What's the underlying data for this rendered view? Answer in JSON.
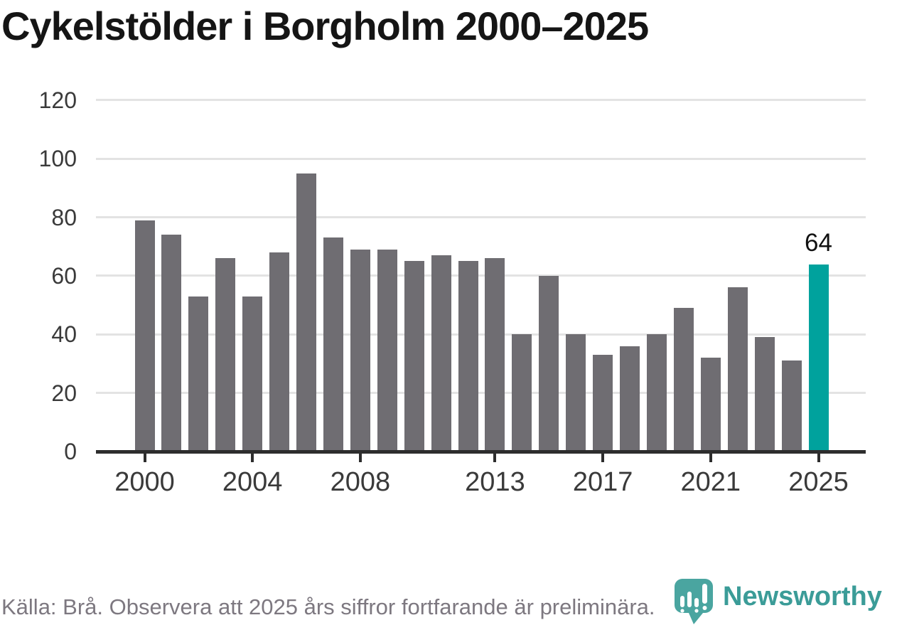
{
  "chart_data": {
    "type": "bar",
    "title": "Cykelstölder i Borgholm 2000–2025",
    "categories": [
      "2000",
      "2001",
      "2002",
      "2003",
      "2004",
      "2005",
      "2006",
      "2007",
      "2008",
      "2009",
      "2010",
      "2011",
      "2012",
      "2013",
      "2014",
      "2015",
      "2016",
      "2017",
      "2018",
      "2019",
      "2020",
      "2021",
      "2022",
      "2023",
      "2024",
      "2025"
    ],
    "values": [
      79,
      74,
      53,
      66,
      53,
      68,
      95,
      73,
      69,
      69,
      65,
      67,
      65,
      66,
      40,
      60,
      40,
      33,
      36,
      40,
      49,
      32,
      56,
      39,
      31,
      64
    ],
    "x_tick_labels": [
      "2000",
      "2004",
      "2008",
      "2013",
      "2017",
      "2021",
      "2025"
    ],
    "y_ticks": [
      0,
      20,
      40,
      60,
      80,
      100,
      120
    ],
    "ylim": [
      0,
      124
    ],
    "xlabel": "",
    "ylabel": "",
    "grid": "horizontal",
    "legend": "none",
    "bar_color": "#6f6d72",
    "highlight": {
      "category": "2025",
      "value_label": "64",
      "color": "#00a29d"
    }
  },
  "footer": {
    "source_note": "Källa: Brå. Observera att 2025 års siffror fortfarande är preliminära."
  },
  "logo": {
    "text": "Newsworthy",
    "color": "#3b9c98",
    "icon": "bar-chart-speech-bubble-icon",
    "icon_color": "#4aa5a0"
  }
}
